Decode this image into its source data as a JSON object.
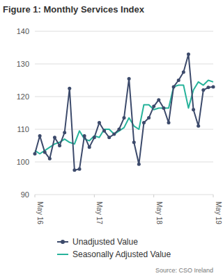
{
  "chart_data": {
    "type": "line",
    "title": "Figure 1: Monthly Services Index",
    "source": "Source: CSO Ireland",
    "categories": [
      "May 16",
      null,
      null,
      null,
      null,
      null,
      null,
      null,
      null,
      null,
      null,
      null,
      "May 17",
      null,
      null,
      null,
      null,
      null,
      null,
      null,
      null,
      null,
      null,
      null,
      "May 18",
      null,
      null,
      null,
      null,
      null,
      null,
      null,
      null,
      null,
      null,
      null,
      "May 19"
    ],
    "series": [
      {
        "name": "Unadjusted Value",
        "color": "#3c4a6b",
        "marker": "circle",
        "values": [
          102.5,
          108,
          103,
          101,
          107.5,
          105,
          109,
          122.5,
          97.5,
          97.8,
          108,
          104.5,
          107.5,
          112,
          109.5,
          107.5,
          108.5,
          110,
          113.5,
          125.5,
          106,
          99.3,
          112,
          113.5,
          117,
          119,
          116.5,
          112,
          123,
          125,
          127.5,
          133,
          116,
          111,
          122,
          122.8,
          123
        ]
      },
      {
        "name": "Seasonally Adjusted Value",
        "color": "#27b39b",
        "marker": "none",
        "values": [
          103.5,
          102.5,
          103.5,
          104.5,
          105.5,
          106,
          107,
          106,
          105.5,
          109.5,
          107,
          106.5,
          108,
          107.5,
          110,
          110,
          108.5,
          109.5,
          110.5,
          113.5,
          111,
          110,
          117.5,
          117.5,
          116,
          116.5,
          116.5,
          116.5,
          123,
          123.5,
          123.5,
          116.5,
          122,
          124.5,
          123.5,
          125,
          124.5
        ]
      }
    ],
    "ylim": [
      90,
      140
    ],
    "yticks": [
      90,
      100,
      110,
      120,
      130,
      140
    ],
    "grid": true,
    "legend": "bottom"
  }
}
